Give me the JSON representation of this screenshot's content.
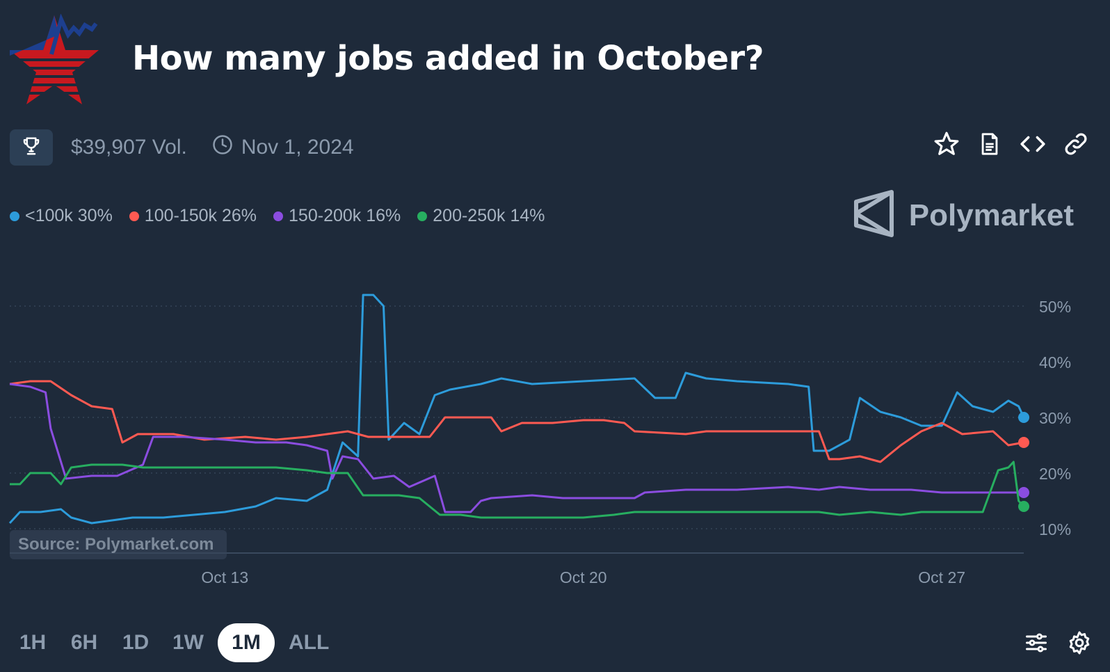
{
  "title": "How many jobs added in October?",
  "meta": {
    "volume": "$39,907 Vol.",
    "date": "Nov 1, 2024"
  },
  "legend": [
    {
      "label": "<100k 30%",
      "color": "#2d9cdb"
    },
    {
      "label": "100-150k 26%",
      "color": "#ff5a52"
    },
    {
      "label": "150-200k 16%",
      "color": "#8b4de0"
    },
    {
      "label": "200-250k 14%",
      "color": "#27ae60"
    }
  ],
  "brand": "Polymarket",
  "source": "Source: Polymarket.com",
  "ranges": [
    "1H",
    "6H",
    "1D",
    "1W",
    "1M",
    "ALL"
  ],
  "active_range": "1M",
  "chart_data": {
    "type": "line",
    "x_ticks": [
      "Oct 13",
      "Oct 20",
      "Oct 27"
    ],
    "y_ticks": [
      "10%",
      "20%",
      "30%",
      "40%",
      "50%"
    ],
    "ylim": [
      5,
      55
    ],
    "xlim": [
      8.8,
      28.6
    ],
    "grid": true,
    "series": [
      {
        "name": "<100k",
        "color": "#2d9cdb",
        "points": [
          [
            8.8,
            11
          ],
          [
            9.0,
            13
          ],
          [
            9.4,
            13
          ],
          [
            9.8,
            13.5
          ],
          [
            10.0,
            12
          ],
          [
            10.4,
            11
          ],
          [
            10.8,
            11.5
          ],
          [
            11.2,
            12
          ],
          [
            11.8,
            12
          ],
          [
            12.4,
            12.5
          ],
          [
            13.0,
            13
          ],
          [
            13.6,
            14
          ],
          [
            14.0,
            15.5
          ],
          [
            14.6,
            15
          ],
          [
            15.0,
            17
          ],
          [
            15.3,
            25.5
          ],
          [
            15.6,
            23
          ],
          [
            15.7,
            52
          ],
          [
            15.9,
            52
          ],
          [
            16.1,
            50
          ],
          [
            16.2,
            26
          ],
          [
            16.5,
            29
          ],
          [
            16.8,
            27
          ],
          [
            17.1,
            34
          ],
          [
            17.4,
            35
          ],
          [
            18.0,
            36
          ],
          [
            18.4,
            37
          ],
          [
            19.0,
            36
          ],
          [
            20.0,
            36.5
          ],
          [
            21.0,
            37
          ],
          [
            21.4,
            33.5
          ],
          [
            21.8,
            33.5
          ],
          [
            22.0,
            38
          ],
          [
            22.4,
            37
          ],
          [
            23.0,
            36.5
          ],
          [
            24.0,
            36
          ],
          [
            24.4,
            35.5
          ],
          [
            24.5,
            24
          ],
          [
            24.8,
            24
          ],
          [
            25.2,
            26
          ],
          [
            25.4,
            33.5
          ],
          [
            25.8,
            31
          ],
          [
            26.2,
            30
          ],
          [
            26.6,
            28.5
          ],
          [
            27.0,
            28.5
          ],
          [
            27.3,
            34.5
          ],
          [
            27.6,
            32
          ],
          [
            28.0,
            31
          ],
          [
            28.3,
            33
          ],
          [
            28.5,
            32
          ],
          [
            28.6,
            30
          ]
        ]
      },
      {
        "name": "100-150k",
        "color": "#ff5a52",
        "points": [
          [
            8.8,
            36
          ],
          [
            9.2,
            36.5
          ],
          [
            9.6,
            36.5
          ],
          [
            10.0,
            34
          ],
          [
            10.4,
            32
          ],
          [
            10.8,
            31.5
          ],
          [
            11.0,
            25.5
          ],
          [
            11.3,
            27
          ],
          [
            12.0,
            27
          ],
          [
            12.6,
            26
          ],
          [
            13.4,
            26.5
          ],
          [
            14.0,
            26
          ],
          [
            14.6,
            26.5
          ],
          [
            15.0,
            27
          ],
          [
            15.4,
            27.5
          ],
          [
            15.8,
            26.5
          ],
          [
            16.6,
            26.5
          ],
          [
            17.0,
            26.5
          ],
          [
            17.3,
            30
          ],
          [
            18.2,
            30
          ],
          [
            18.4,
            27.5
          ],
          [
            18.8,
            29
          ],
          [
            19.4,
            29
          ],
          [
            20.0,
            29.5
          ],
          [
            20.4,
            29.5
          ],
          [
            20.8,
            29
          ],
          [
            21.0,
            27.5
          ],
          [
            22.0,
            27
          ],
          [
            22.4,
            27.5
          ],
          [
            23.0,
            27.5
          ],
          [
            24.0,
            27.5
          ],
          [
            24.6,
            27.5
          ],
          [
            24.8,
            22.5
          ],
          [
            25.0,
            22.5
          ],
          [
            25.4,
            23
          ],
          [
            25.8,
            22
          ],
          [
            26.2,
            25
          ],
          [
            26.6,
            27.5
          ],
          [
            27.0,
            29
          ],
          [
            27.4,
            27
          ],
          [
            28.0,
            27.5
          ],
          [
            28.3,
            25
          ],
          [
            28.6,
            25.5
          ]
        ]
      },
      {
        "name": "150-200k",
        "color": "#8b4de0",
        "points": [
          [
            8.8,
            36
          ],
          [
            9.2,
            35.5
          ],
          [
            9.5,
            34.5
          ],
          [
            9.6,
            28
          ],
          [
            9.9,
            19
          ],
          [
            10.4,
            19.5
          ],
          [
            10.9,
            19.5
          ],
          [
            11.4,
            21.5
          ],
          [
            11.6,
            26.5
          ],
          [
            12.2,
            26.5
          ],
          [
            13.0,
            26
          ],
          [
            13.6,
            25.5
          ],
          [
            14.2,
            25.5
          ],
          [
            14.6,
            25
          ],
          [
            15.0,
            24
          ],
          [
            15.1,
            19
          ],
          [
            15.3,
            23
          ],
          [
            15.6,
            22.5
          ],
          [
            15.9,
            19
          ],
          [
            16.3,
            19.5
          ],
          [
            16.6,
            17.5
          ],
          [
            17.1,
            19.5
          ],
          [
            17.3,
            13
          ],
          [
            17.8,
            13
          ],
          [
            18.0,
            15
          ],
          [
            18.2,
            15.5
          ],
          [
            19.0,
            16
          ],
          [
            19.6,
            15.5
          ],
          [
            20.6,
            15.5
          ],
          [
            21.0,
            15.5
          ],
          [
            21.2,
            16.5
          ],
          [
            22.0,
            17
          ],
          [
            23.0,
            17
          ],
          [
            24.0,
            17.5
          ],
          [
            24.6,
            17
          ],
          [
            25.0,
            17.5
          ],
          [
            25.6,
            17
          ],
          [
            26.4,
            17
          ],
          [
            27.0,
            16.5
          ],
          [
            27.6,
            16.5
          ],
          [
            28.2,
            16.5
          ],
          [
            28.6,
            16.5
          ]
        ]
      },
      {
        "name": "200-250k",
        "color": "#27ae60",
        "points": [
          [
            8.8,
            18
          ],
          [
            9.0,
            18
          ],
          [
            9.2,
            20
          ],
          [
            9.6,
            20
          ],
          [
            9.8,
            18
          ],
          [
            10.0,
            21
          ],
          [
            10.4,
            21.5
          ],
          [
            11.0,
            21.5
          ],
          [
            11.4,
            21
          ],
          [
            12.0,
            21
          ],
          [
            12.6,
            21
          ],
          [
            13.0,
            21
          ],
          [
            13.6,
            21
          ],
          [
            14.0,
            21
          ],
          [
            14.6,
            20.5
          ],
          [
            15.0,
            20
          ],
          [
            15.4,
            20
          ],
          [
            15.7,
            16
          ],
          [
            16.0,
            16
          ],
          [
            16.4,
            16
          ],
          [
            16.8,
            15.5
          ],
          [
            17.2,
            12.5
          ],
          [
            17.6,
            12.5
          ],
          [
            18.0,
            12
          ],
          [
            18.6,
            12
          ],
          [
            19.4,
            12
          ],
          [
            20.0,
            12
          ],
          [
            20.6,
            12.5
          ],
          [
            21.0,
            13
          ],
          [
            21.6,
            13
          ],
          [
            22.4,
            13
          ],
          [
            23.0,
            13
          ],
          [
            24.0,
            13
          ],
          [
            24.6,
            13
          ],
          [
            25.0,
            12.5
          ],
          [
            25.6,
            13
          ],
          [
            26.2,
            12.5
          ],
          [
            26.6,
            13
          ],
          [
            27.0,
            13
          ],
          [
            27.4,
            13
          ],
          [
            27.8,
            13
          ],
          [
            28.1,
            20.5
          ],
          [
            28.3,
            21
          ],
          [
            28.4,
            22
          ],
          [
            28.5,
            15
          ],
          [
            28.6,
            14
          ]
        ]
      }
    ]
  },
  "icons": {
    "trophy": "trophy-icon",
    "clock": "clock-icon",
    "star": "star-icon",
    "document": "document-icon",
    "code": "code-icon",
    "link": "link-icon",
    "sliders": "sliders-icon",
    "settings": "gear-icon",
    "logo": "bls-star-logo"
  }
}
